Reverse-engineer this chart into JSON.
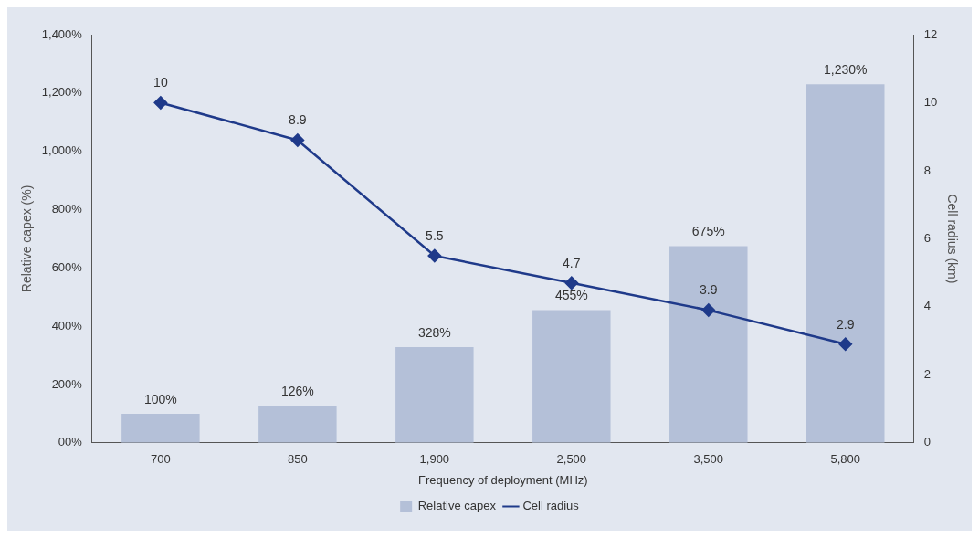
{
  "chart_data": {
    "type": "bar",
    "xlabel": "Frequency of deployment (MHz)",
    "ylabel": "Relative capex (%)",
    "y2label": "Cell radius (km)",
    "categories": [
      "700",
      "850",
      "1,900",
      "2,500",
      "3,500",
      "5,800"
    ],
    "series": [
      {
        "name": "Relative capex",
        "color": "#b4c0d8",
        "values": [
          100,
          126,
          328,
          455,
          675,
          1230
        ],
        "value_labels": [
          "100%",
          "126%",
          "328%",
          "455%",
          "675%",
          "1,230%"
        ]
      },
      {
        "name": "Cell radius",
        "type": "line",
        "axis": "y2",
        "color": "#1f3a8a",
        "marker": "diamond",
        "values": [
          10,
          8.9,
          5.5,
          4.7,
          3.9,
          2.9
        ],
        "value_labels": [
          "10",
          "8.9",
          "5.5",
          "4.7",
          "3.9",
          "2.9"
        ]
      }
    ],
    "ylim": [
      0,
      1400
    ],
    "yticks": [
      {
        "value": 0,
        "label": "00%"
      },
      {
        "value": 200,
        "label": "200%"
      },
      {
        "value": 400,
        "label": "400%"
      },
      {
        "value": 600,
        "label": "600%"
      },
      {
        "value": 800,
        "label": "800%"
      },
      {
        "value": 1000,
        "label": "1,000%"
      },
      {
        "value": 1200,
        "label": "1,200%"
      },
      {
        "value": 1400,
        "label": "1,400%"
      }
    ],
    "y2lim": [
      0,
      12
    ],
    "y2ticks": [
      0,
      2,
      4,
      6,
      8,
      10,
      12
    ],
    "grid": false,
    "legend": "bottom"
  }
}
